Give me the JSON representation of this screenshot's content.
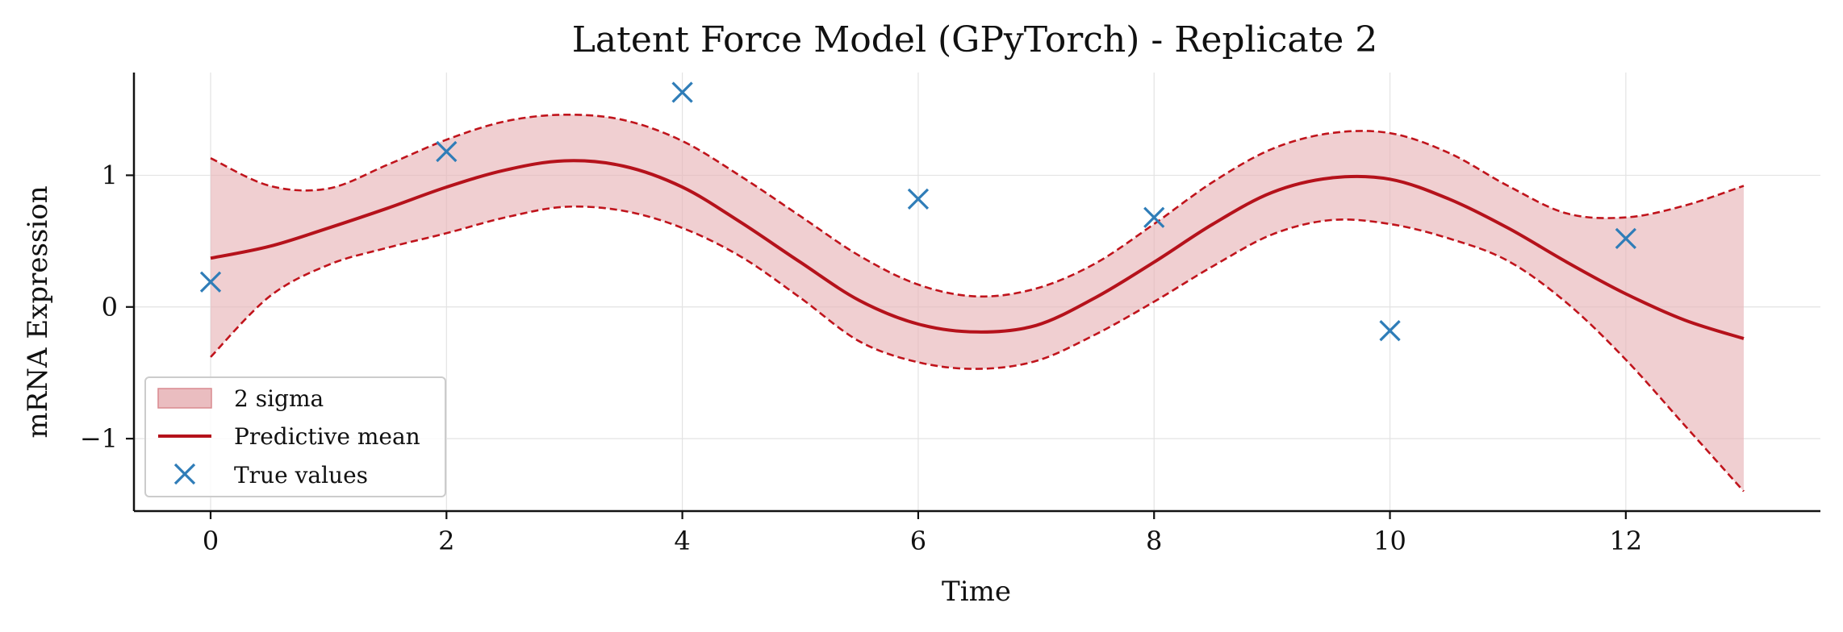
{
  "chart_data": {
    "type": "line",
    "title": "Latent Force Model (GPyTorch) - Replicate 2",
    "xlabel": "Time",
    "ylabel": "mRNA Expression",
    "xlim": [
      -0.65,
      13.65
    ],
    "ylim": [
      -1.55,
      1.78
    ],
    "xticks": [
      0,
      2,
      4,
      6,
      8,
      10,
      12
    ],
    "xtick_labels": [
      "0",
      "2",
      "4",
      "6",
      "8",
      "10",
      "12"
    ],
    "yticks": [
      -1,
      0,
      1
    ],
    "ytick_labels": [
      "−1",
      "0",
      "1"
    ],
    "grid": true,
    "legend_position": "lower-left",
    "legend": [
      {
        "key": "band",
        "label": "2 sigma"
      },
      {
        "key": "mean",
        "label": "Predictive mean"
      },
      {
        "key": "true",
        "label": "True values"
      }
    ],
    "colors": {
      "mean": "#b5121b",
      "band_fill": "#e8b6b9",
      "band_edge": "#c0141c",
      "markers": "#2f7db8"
    },
    "mean": {
      "x": [
        0,
        0.5,
        1,
        1.5,
        2,
        2.5,
        3,
        3.5,
        4,
        4.5,
        5,
        5.5,
        6,
        6.5,
        7,
        7.5,
        8,
        8.5,
        9,
        9.5,
        10,
        10.5,
        11,
        11.5,
        12,
        12.5,
        13
      ],
      "y": [
        0.37,
        0.46,
        0.6,
        0.75,
        0.91,
        1.04,
        1.11,
        1.07,
        0.91,
        0.64,
        0.34,
        0.05,
        -0.13,
        -0.19,
        -0.14,
        0.07,
        0.34,
        0.63,
        0.87,
        0.98,
        0.97,
        0.82,
        0.6,
        0.34,
        0.1,
        -0.1,
        -0.24
      ]
    },
    "upper": {
      "x": [
        0,
        0.5,
        1,
        1.5,
        2,
        2.5,
        3,
        3.5,
        4,
        4.5,
        5,
        5.5,
        6,
        6.5,
        7,
        7.5,
        8,
        8.5,
        9,
        9.5,
        10,
        10.5,
        11,
        11.5,
        12,
        12.5,
        13
      ],
      "y": [
        1.13,
        0.92,
        0.9,
        1.08,
        1.27,
        1.41,
        1.46,
        1.42,
        1.26,
        0.99,
        0.69,
        0.39,
        0.17,
        0.08,
        0.14,
        0.33,
        0.63,
        0.95,
        1.2,
        1.32,
        1.32,
        1.17,
        0.92,
        0.71,
        0.68,
        0.77,
        0.92
      ]
    },
    "lower": {
      "x": [
        0,
        0.5,
        1,
        1.5,
        2,
        2.5,
        3,
        3.5,
        4,
        4.5,
        5,
        5.5,
        6,
        6.5,
        7,
        7.5,
        8,
        8.5,
        9,
        9.5,
        10,
        10.5,
        11,
        11.5,
        12,
        12.5,
        13
      ],
      "y": [
        -0.38,
        0.08,
        0.32,
        0.45,
        0.56,
        0.68,
        0.76,
        0.73,
        0.6,
        0.38,
        0.07,
        -0.26,
        -0.42,
        -0.47,
        -0.41,
        -0.21,
        0.04,
        0.31,
        0.55,
        0.66,
        0.63,
        0.52,
        0.35,
        0.03,
        -0.4,
        -0.9,
        -1.4
      ]
    },
    "true_values": {
      "x": [
        0,
        2,
        4,
        6,
        8,
        10,
        12
      ],
      "y": [
        0.19,
        1.18,
        1.63,
        0.82,
        0.68,
        -0.18,
        0.52
      ]
    }
  }
}
